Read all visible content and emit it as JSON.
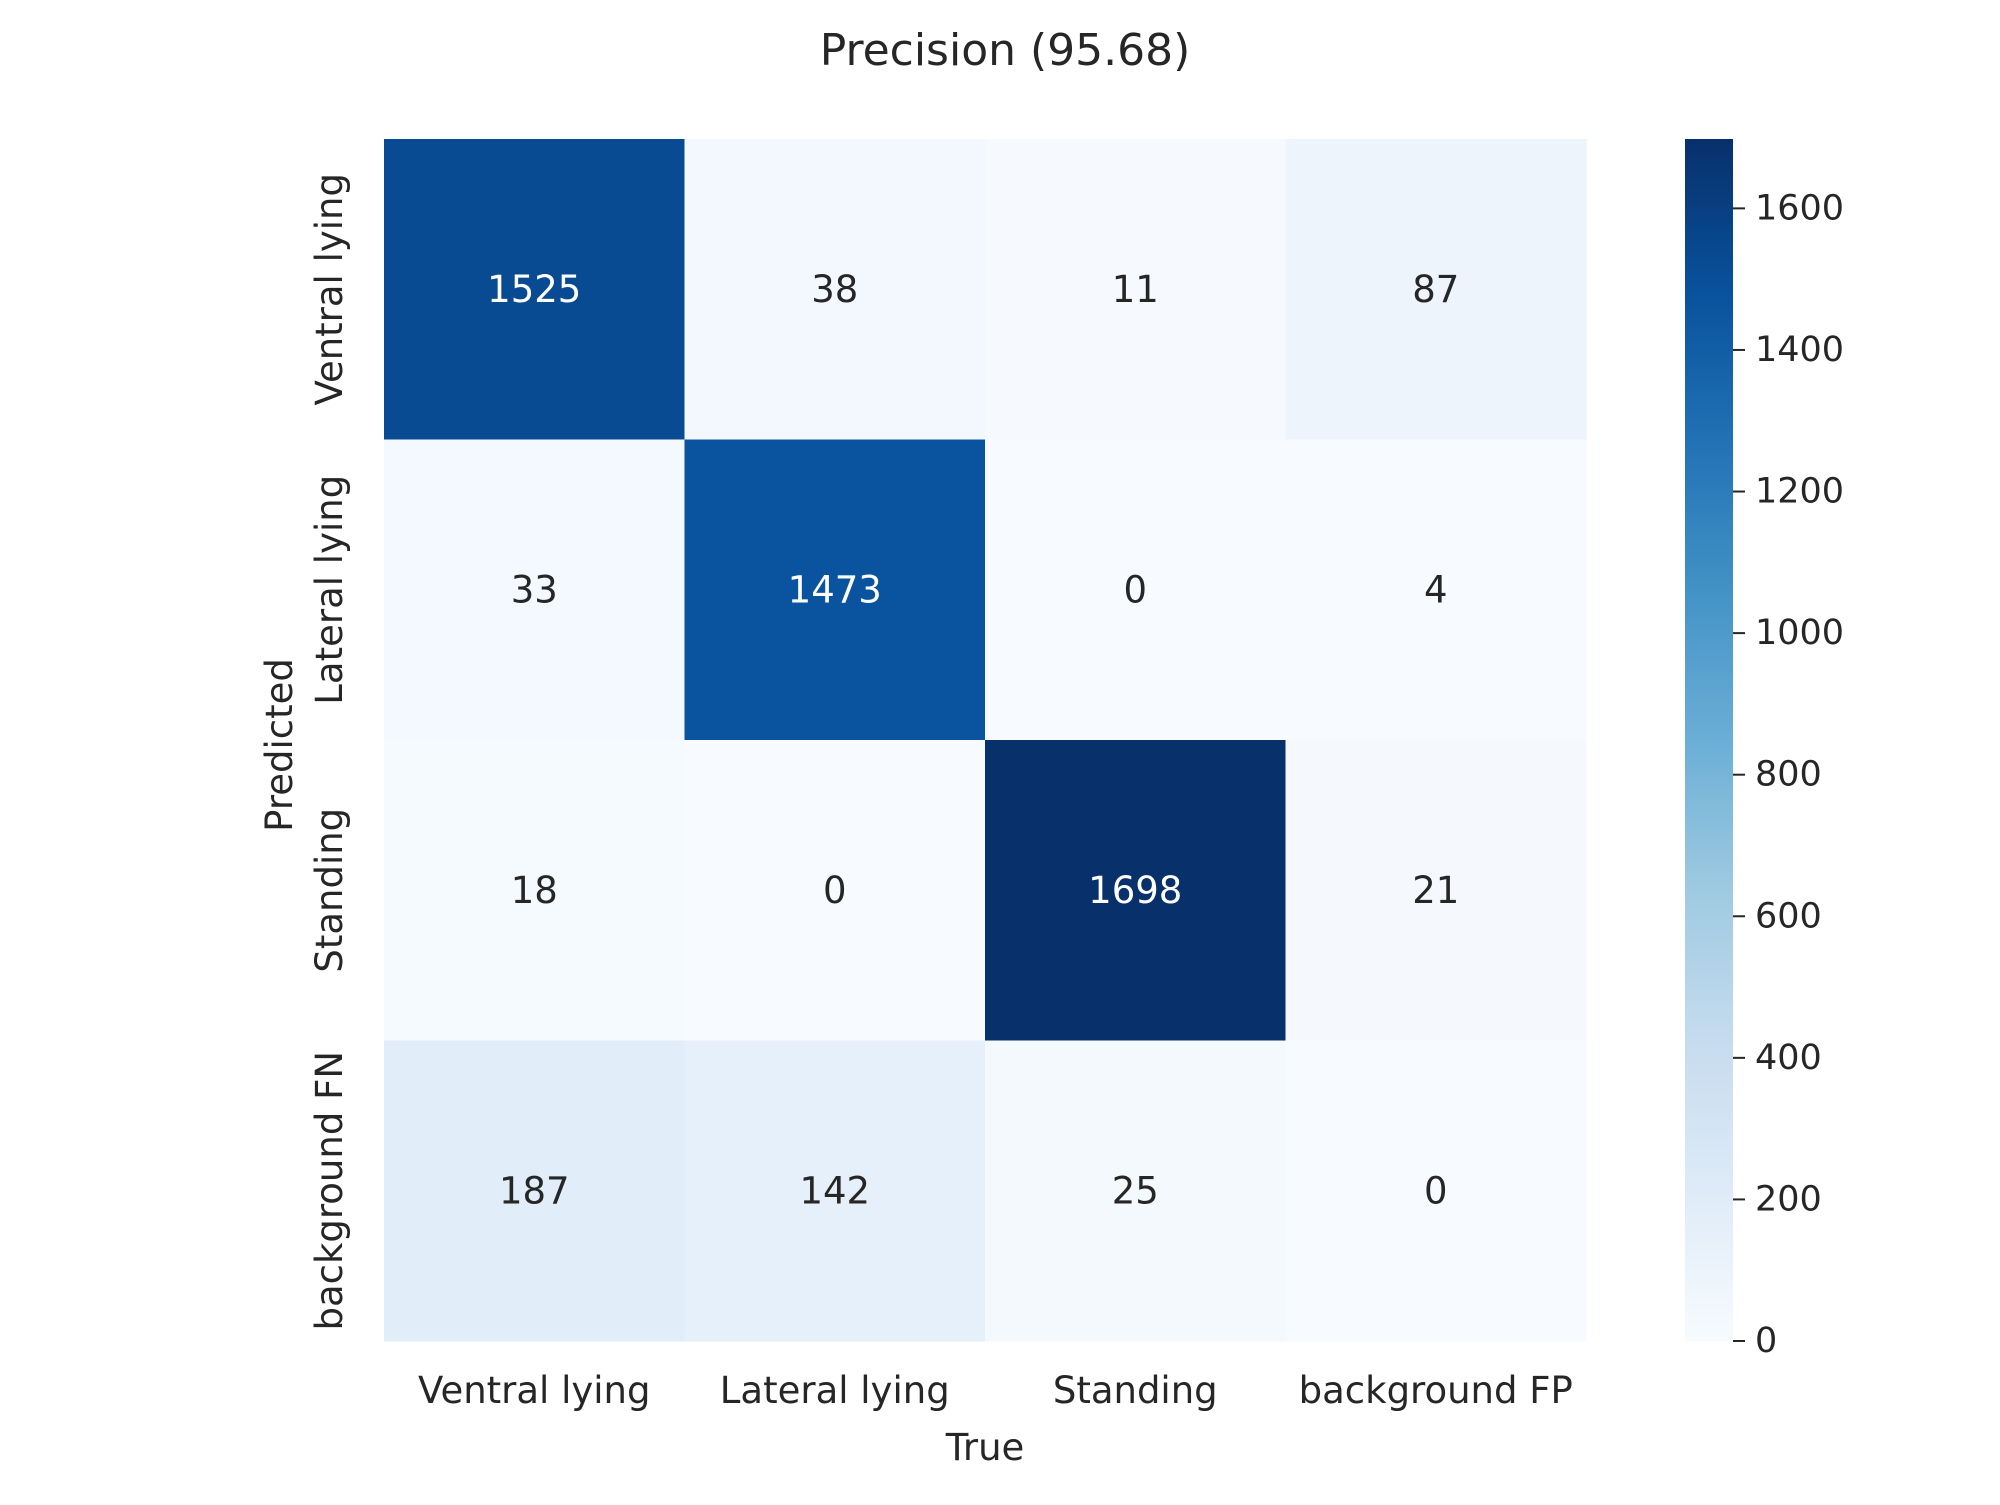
{
  "chart_data": {
    "type": "heatmap",
    "title": "Precision (95.68)",
    "xlabel": "True",
    "ylabel": "Predicted",
    "x_categories": [
      "Ventral lying",
      "Lateral lying",
      "Standing",
      "background FP"
    ],
    "y_categories": [
      "Ventral lying",
      "Lateral lying",
      "Standing",
      "background FN"
    ],
    "values": [
      [
        1525,
        38,
        11,
        87
      ],
      [
        33,
        1473,
        0,
        4
      ],
      [
        18,
        0,
        1698,
        21
      ],
      [
        187,
        142,
        25,
        0
      ]
    ],
    "colorbar": {
      "min": 0,
      "max": 1698,
      "ticks": [
        0,
        200,
        400,
        600,
        800,
        1000,
        1200,
        1400,
        1600
      ]
    },
    "colormap": "Blues",
    "colors": {
      "low": "#f7fbff",
      "high": "#08306b",
      "text_dark": "#262626",
      "text_light": "#ffffff"
    }
  }
}
